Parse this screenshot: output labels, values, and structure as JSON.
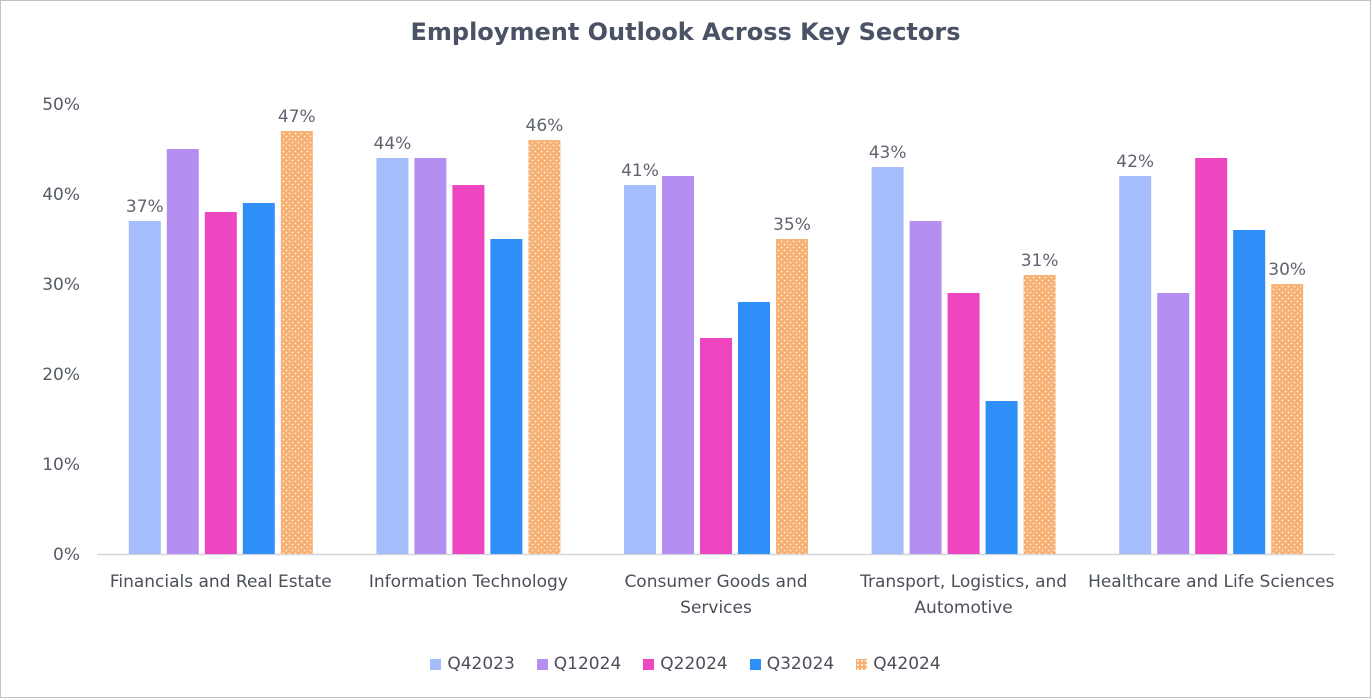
{
  "chart_data": {
    "type": "bar",
    "title": "Employment Outlook Across Key Sectors",
    "categories": [
      [
        "Financials and Real Estate"
      ],
      [
        "Information Technology"
      ],
      [
        "Consumer Goods and",
        "Services"
      ],
      [
        "Transport, Logistics, and",
        "Automotive"
      ],
      [
        "Healthcare and Life Sciences"
      ]
    ],
    "ylim": [
      0,
      50
    ],
    "yticks": [
      "0%",
      "10%",
      "20%",
      "30%",
      "40%",
      "50%"
    ],
    "grid": false,
    "legend_position": "bottom",
    "series": [
      {
        "name": "Q42023",
        "color": "#a6bdfb",
        "pattern": "solid",
        "values": [
          37,
          44,
          41,
          43,
          42
        ],
        "show_labels": true
      },
      {
        "name": "Q12024",
        "color": "#b48ef0",
        "pattern": "solid",
        "values": [
          45,
          44,
          42,
          37,
          29
        ],
        "show_labels": false
      },
      {
        "name": "Q22024",
        "color": "#ee45c0",
        "pattern": "solid",
        "values": [
          38,
          41,
          24,
          29,
          44
        ],
        "show_labels": false
      },
      {
        "name": "Q32024",
        "color": "#2f8ff8",
        "pattern": "solid",
        "values": [
          39,
          35,
          28,
          17,
          36
        ],
        "show_labels": false
      },
      {
        "name": "Q42024",
        "color": "#f7b071",
        "pattern": "dotted",
        "values": [
          47,
          46,
          35,
          31,
          30
        ],
        "show_labels": true
      }
    ],
    "data_labels": {
      "Q42023": [
        "37%",
        "44%",
        "41%",
        "43%",
        "42%"
      ],
      "Q42024": [
        "47%",
        "46%",
        "35%",
        "31%",
        "30%"
      ]
    }
  }
}
